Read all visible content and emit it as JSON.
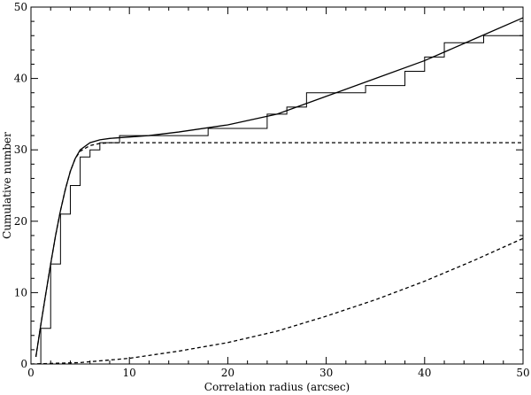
{
  "chart_data": {
    "type": "line",
    "title": "",
    "xlabel": "Correlation radius (arcsec)",
    "ylabel": "Cumulative number",
    "xlim": [
      0,
      50
    ],
    "ylim": [
      0,
      50
    ],
    "x_ticks": [
      0,
      10,
      20,
      30,
      40,
      50
    ],
    "y_ticks": [
      0,
      10,
      20,
      30,
      40,
      50
    ],
    "x_tick_labels": [
      "0",
      "10",
      "20",
      "30",
      "40",
      "50"
    ],
    "y_tick_labels": [
      "0",
      "10",
      "20",
      "30",
      "40",
      "50"
    ],
    "grid": false,
    "legend": false,
    "series": [
      {
        "style": "step",
        "stroke": "solid",
        "color": "#000000",
        "x": [
          0.6,
          1.0,
          2.0,
          3.0,
          4.0,
          5.0,
          6.0,
          7.0,
          9.0,
          18.0,
          24.0,
          26.0,
          28.0,
          34.0,
          38.0,
          40.0,
          42.0,
          46.0,
          50.0
        ],
        "y": [
          0,
          5,
          14,
          21,
          25,
          29,
          30,
          31,
          32,
          33,
          35,
          36,
          38,
          39,
          41,
          43,
          45,
          46,
          46
        ]
      },
      {
        "style": "curve",
        "stroke": "solid",
        "color": "#000000",
        "x": [
          0.5,
          1,
          1.5,
          2,
          2.5,
          3,
          3.5,
          4,
          4.5,
          5,
          6,
          7,
          8,
          10,
          12,
          15,
          20,
          25,
          30,
          35,
          40,
          45,
          50
        ],
        "y": [
          1.0,
          5.5,
          9.8,
          14.0,
          18.0,
          21.5,
          24.5,
          27.0,
          28.8,
          30.0,
          31.0,
          31.4,
          31.6,
          31.8,
          32.0,
          32.5,
          33.5,
          35.0,
          37.5,
          40.0,
          42.5,
          45.5,
          48.5
        ]
      },
      {
        "style": "curve",
        "stroke": "dashed",
        "color": "#000000",
        "x": [
          0.5,
          1,
          1.5,
          2,
          2.5,
          3,
          3.5,
          4,
          4.5,
          5,
          6,
          7,
          8,
          10,
          15,
          20,
          30,
          40,
          50
        ],
        "y": [
          1.0,
          5.5,
          9.8,
          14.0,
          18.0,
          21.5,
          24.5,
          27.0,
          28.8,
          29.8,
          30.6,
          30.9,
          31.0,
          31.0,
          31.0,
          31.0,
          31.0,
          31.0,
          31.0
        ]
      },
      {
        "style": "curve",
        "stroke": "dashed",
        "color": "#000000",
        "x": [
          0,
          5,
          10,
          15,
          20,
          25,
          30,
          35,
          40,
          45,
          50
        ],
        "y": [
          0,
          0.2,
          0.8,
          1.8,
          3.0,
          4.6,
          6.7,
          9.0,
          11.6,
          14.5,
          17.6
        ]
      }
    ]
  }
}
